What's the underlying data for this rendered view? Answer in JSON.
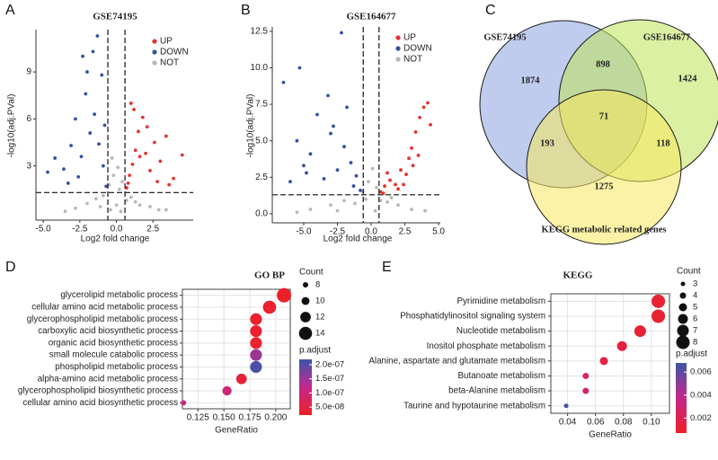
{
  "chart_data": [
    {
      "type": "scatter",
      "panel": "A",
      "title": "GSE74195",
      "xlabel": "Log2 fold change",
      "ylabel": "-log10(adj.PVal)",
      "xlim": [
        -5.5,
        5.25
      ],
      "ylim": [
        -0.46,
        11.7
      ],
      "xticks": [
        {
          "value": -5,
          "label": "-5.0"
        },
        -2.5,
        {
          "value": 0,
          "label": "0.0"
        },
        2.5
      ],
      "yticks": [
        3,
        6,
        9
      ],
      "vlines": [
        -0.585,
        0.585
      ],
      "hline": 1.3,
      "series": [
        {
          "name": "UP",
          "color": "#e3342f",
          "x": [
            0.7,
            0.9,
            1.1,
            1.3,
            1.5,
            1.8,
            2.0,
            2.3,
            2.6,
            3.0,
            3.4,
            3.9,
            1.2,
            0.8,
            1.6,
            2.1,
            2.8,
            1.0,
            4.5,
            3.6
          ],
          "values": [
            1.6,
            2.4,
            3.1,
            4.0,
            5.2,
            6.1,
            3.8,
            2.7,
            4.5,
            3.3,
            4.9,
            2.2,
            6.6,
            1.9,
            3.6,
            5.5,
            2.0,
            7.0,
            3.7,
            1.8
          ]
        },
        {
          "name": "DOWN",
          "color": "#3451a3",
          "x": [
            -0.7,
            -0.9,
            -1.2,
            -1.5,
            -1.8,
            -2.1,
            -2.4,
            -2.8,
            -3.1,
            -3.6,
            -4.2,
            -4.7,
            -1.0,
            -1.6,
            -2.6,
            -0.8,
            -2.0,
            -3.3,
            -1.3,
            -2.3
          ],
          "values": [
            1.7,
            3.0,
            4.4,
            6.3,
            5.1,
            7.6,
            3.6,
            6.0,
            4.3,
            2.8,
            3.5,
            2.6,
            8.8,
            10.3,
            2.3,
            5.6,
            9.0,
            1.9,
            11.3,
            10.0
          ]
        },
        {
          "name": "NOT",
          "color": "#b8b8b8",
          "x": [
            -2.8,
            -2.0,
            -1.4,
            -0.9,
            -0.5,
            -0.2,
            0.1,
            0.4,
            0.7,
            1.0,
            1.6,
            2.3,
            2.9,
            -0.3,
            0.2,
            -0.4,
            0.3,
            -1.1,
            1.3,
            0.0,
            -3.5,
            3.4
          ],
          "values": [
            0.3,
            0.6,
            0.9,
            1.1,
            1.8,
            2.4,
            2.9,
            2.0,
            0.8,
            1.0,
            0.5,
            0.4,
            0.2,
            3.5,
            1.5,
            0.2,
            0.1,
            0.4,
            0.7,
            0.5,
            0.1,
            0.2
          ]
        }
      ]
    },
    {
      "type": "scatter",
      "panel": "B",
      "title": "GSE164677",
      "xlabel": "Log2 fold change",
      "ylabel": "-log10(adj.PVal)",
      "xlim": [
        -7.33,
        5.13
      ],
      "ylim": [
        -0.62,
        12.8
      ],
      "xticks": [
        {
          "value": -5,
          "label": "-5.0"
        },
        -2.5,
        {
          "value": 0,
          "label": "0.0"
        },
        2.5,
        {
          "value": 5,
          "label": "5.0"
        }
      ],
      "yticks": [
        {
          "value": 0,
          "label": "0.0"
        },
        2.5,
        {
          "value": 5,
          "label": "5.0"
        },
        7.5,
        {
          "value": 10,
          "label": "10.0"
        },
        12.5
      ],
      "vlines": [
        -0.585,
        0.585
      ],
      "hline": 1.3,
      "series": [
        {
          "name": "UP",
          "color": "#e3342f",
          "x": [
            0.7,
            1.0,
            1.4,
            1.8,
            2.2,
            2.6,
            3.0,
            3.3,
            3.6,
            3.9,
            4.2,
            2.0,
            1.2,
            2.8,
            3.5,
            0.9,
            4.4,
            2.4,
            3.1
          ],
          "values": [
            1.5,
            1.9,
            2.3,
            2.0,
            3.0,
            2.7,
            4.5,
            5.6,
            6.6,
            7.3,
            7.6,
            1.7,
            2.8,
            3.8,
            4.0,
            1.4,
            6.1,
            2.0,
            3.3
          ]
        },
        {
          "name": "DOWN",
          "color": "#3451a3",
          "x": [
            -0.8,
            -1.1,
            -1.5,
            -2.0,
            -2.5,
            -3.0,
            -3.5,
            -4.0,
            -4.5,
            -5.0,
            -5.5,
            -6.0,
            -6.5,
            -2.2,
            -3.2,
            -1.8,
            -4.8,
            -2.8,
            -5.3,
            -1.3
          ],
          "values": [
            1.6,
            2.6,
            3.5,
            4.6,
            3.0,
            5.5,
            2.4,
            6.8,
            4.1,
            3.3,
            5.0,
            2.2,
            9.0,
            12.4,
            8.1,
            7.3,
            2.8,
            6.0,
            10.0,
            1.9
          ]
        },
        {
          "name": "NOT",
          "color": "#b8b8b8",
          "x": [
            -4.5,
            -3.0,
            -2.0,
            -1.2,
            -0.6,
            -0.2,
            0.1,
            0.4,
            0.7,
            1.2,
            2.0,
            3.0,
            -0.4,
            0.3,
            -2.5,
            1.5,
            -5.5,
            4.0
          ],
          "values": [
            0.3,
            0.6,
            0.9,
            0.7,
            1.5,
            2.2,
            3.1,
            1.8,
            0.9,
            0.8,
            0.6,
            0.3,
            1.0,
            0.2,
            0.2,
            1.1,
            0.1,
            0.2
          ]
        }
      ]
    },
    {
      "type": "venn",
      "panel": "C",
      "sets": [
        {
          "name": "GSE74195",
          "color": "#8aa3e0",
          "text_color": "#34336e"
        },
        {
          "name": "GSE164677",
          "color": "#bfe45a",
          "text_color": "#3a7f3a"
        },
        {
          "name": "KEGG metabolic related genes",
          "color": "#f8e75f",
          "text_color": "#f2a22c"
        }
      ],
      "values": [
        1874,
        1424,
        1275,
        898,
        193,
        118,
        71
      ]
    },
    {
      "type": "dot",
      "panel": "D",
      "title": "GO BP",
      "xlabel": "GeneRatio",
      "categories": [
        "glycerolipid metabolic process",
        "cellular amino acid metabolic process",
        "glycerophospholipid metabolic process",
        "carboxylic acid biosynthetic process",
        "organic acid biosynthetic process",
        "small molecule catabolic process",
        "phospholipid metabolic process",
        "alpha-amino acid metabolic process",
        "glycerophospholipid biosynthetic process",
        "cellular amino acid biosynthetic process"
      ],
      "values": [
        0.208,
        0.194,
        0.181,
        0.181,
        0.181,
        0.181,
        0.181,
        0.167,
        0.153,
        0.111
      ],
      "count": [
        15,
        14,
        13,
        13,
        13,
        13,
        13,
        12,
        11,
        8
      ],
      "p_adjust": [
        2.5e-08,
        3e-08,
        3e-08,
        3e-08,
        3e-08,
        1.5e-07,
        2.1e-07,
        4e-08,
        1e-07,
        1.1e-07
      ],
      "xlim": [
        0.11,
        0.214
      ],
      "xticks": [
        0.125,
        {
          "value": 0.15,
          "label": "0.150"
        },
        0.175,
        {
          "value": 0.2,
          "label": "0.200"
        }
      ],
      "size_title": "Count",
      "size_legend": [
        8,
        10,
        12,
        14
      ],
      "color_title": "p.adjust",
      "clim": [
        2.2e-08,
        2.19e-07
      ],
      "cticks": [
        {
          "value": 2e-07,
          "label": "2.0e-07"
        },
        {
          "value": 1.5e-07,
          "label": "1.5e-07"
        },
        {
          "value": 1e-07,
          "label": "1.0e-07"
        },
        {
          "value": 5e-08,
          "label": "5.0e-08"
        }
      ],
      "colorscale": [
        "#ee2025",
        "#c4288c",
        "#3c55a8"
      ]
    },
    {
      "type": "dot",
      "panel": "E",
      "title": "KEGG",
      "xlabel": "GeneRatio",
      "categories": [
        "Pyrimidine metabolism",
        "Phosphatidylinositol signaling system",
        "Nucleotide metabolism",
        "Inositol phosphate metabolism",
        "Alanine, aspartate and glutamate metabolism",
        "Butanoate metabolism",
        "beta-Alanine metabolism",
        "Taurine and hypotaurine metabolism"
      ],
      "values": [
        0.105,
        0.105,
        0.092,
        0.079,
        0.066,
        0.053,
        0.053,
        0.039
      ],
      "count": [
        8,
        8,
        7,
        6,
        5,
        4,
        4,
        3
      ],
      "p_adjust": [
        0.0011,
        0.0011,
        0.0012,
        0.0014,
        0.0016,
        0.0025,
        0.003,
        0.0066
      ],
      "xlim": [
        0.028,
        0.113
      ],
      "xticks": [
        0.04,
        0.06,
        0.08,
        {
          "value": 0.1,
          "label": "0.10"
        }
      ],
      "size_title": "Count",
      "size_legend": [
        3,
        4,
        5,
        6,
        7,
        8
      ],
      "color_title": "p.adjust",
      "clim": [
        0.0007,
        0.0068
      ],
      "cticks": [
        0.006,
        0.004,
        0.002
      ],
      "colorscale": [
        "#ee2025",
        "#c4288c",
        "#3c55a8"
      ]
    }
  ]
}
